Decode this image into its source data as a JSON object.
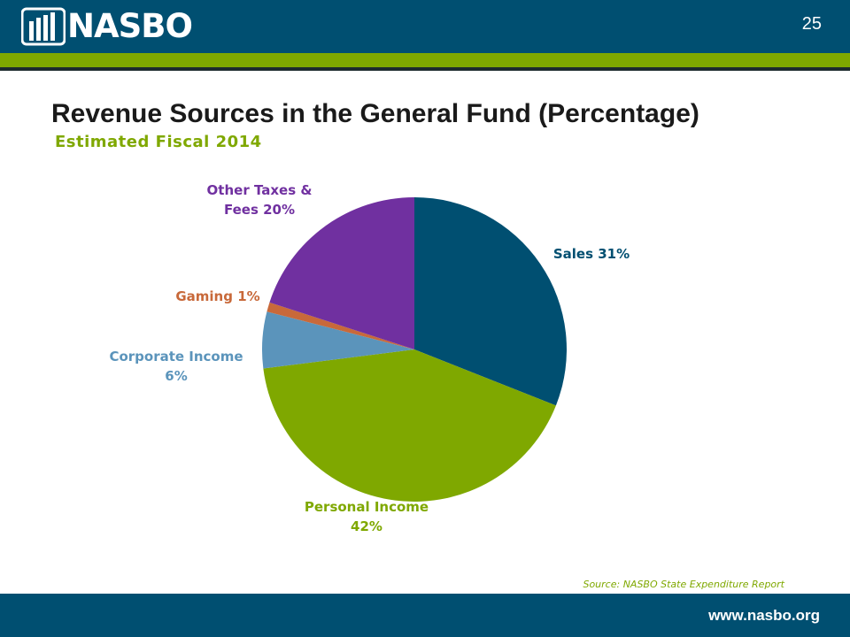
{
  "header": {
    "logo_text": "NASBO",
    "page_number": "25"
  },
  "title": "Revenue Sources in the General Fund (Percentage)",
  "subtitle": "Estimated Fiscal 2014",
  "source": "Source: NASBO State Expenditure Report",
  "footer": {
    "url": "www.nasbo.org"
  },
  "colors": {
    "brand_navy": "#004f71",
    "brand_green": "#7fa800"
  },
  "chart_data": {
    "type": "pie",
    "title": "Revenue Sources in the General Fund (Percentage)",
    "slices": [
      {
        "name": "Sales",
        "value": 31,
        "color": "#004f71",
        "label_lines": [
          "Sales 31%"
        ]
      },
      {
        "name": "Personal Income",
        "value": 42,
        "color": "#7fa800",
        "label_lines": [
          "Personal Income",
          "42%"
        ]
      },
      {
        "name": "Corporate Income",
        "value": 6,
        "color": "#5b94bb",
        "label_lines": [
          "Corporate Income",
          "6%"
        ]
      },
      {
        "name": "Gaming",
        "value": 1,
        "color": "#c8693a",
        "label_lines": [
          "Gaming 1%"
        ]
      },
      {
        "name": "Other Taxes & Fees",
        "value": 20,
        "color": "#7030a0",
        "label_lines": [
          "Other Taxes &",
          "Fees 20%"
        ]
      }
    ]
  }
}
